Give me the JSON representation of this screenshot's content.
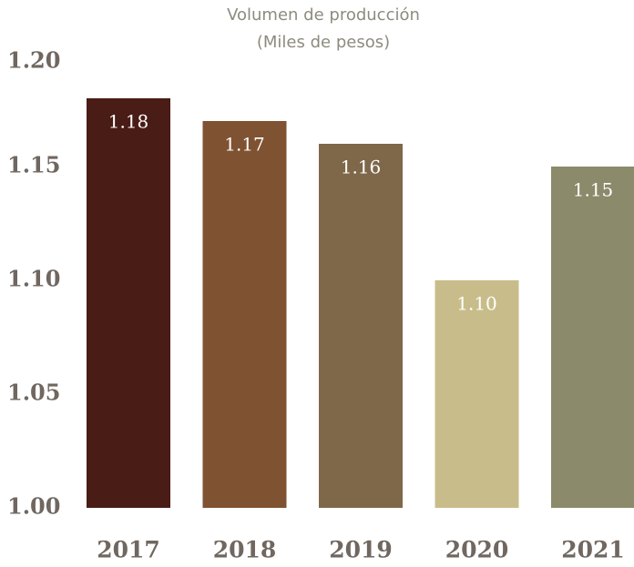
{
  "chart_data": {
    "type": "bar",
    "title": "Volumen de producción",
    "subtitle": "(Miles de pesos)",
    "categories": [
      "2017",
      "2018",
      "2019",
      "2020",
      "2021"
    ],
    "values": [
      1.18,
      1.17,
      1.16,
      1.1,
      1.15
    ],
    "value_labels": [
      "1.18",
      "1.17",
      "1.16",
      "1.10",
      "1.15"
    ],
    "colors": [
      "#4a1c16",
      "#7f5232",
      "#7f6749",
      "#c8bd8a",
      "#8b8a6a"
    ],
    "ylim": [
      1,
      1.2
    ],
    "yticks": [
      {
        "value": 1,
        "label": "1.00"
      },
      1.05,
      {
        "value": 1.1,
        "label": "1.10"
      },
      1.15,
      {
        "value": 1.2,
        "label": "1.20"
      }
    ],
    "grid": false
  }
}
